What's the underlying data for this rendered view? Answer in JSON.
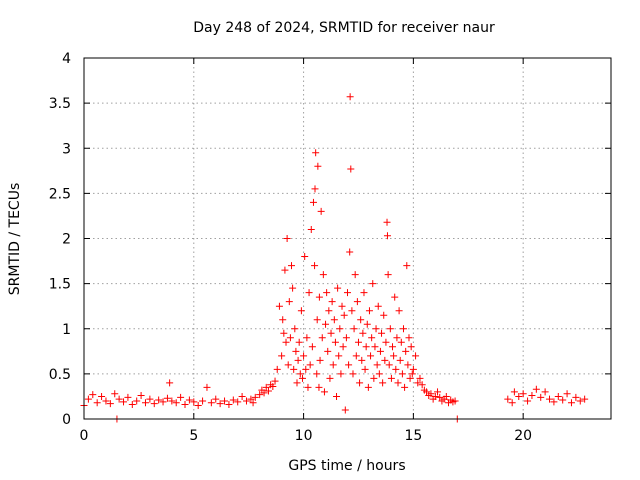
{
  "chart_data": {
    "type": "scatter",
    "title": "Day 248 of 2024, SRMTID for receiver naur",
    "xlabel": "GPS time / hours",
    "ylabel": "SRMTID / TECUs",
    "xlim": [
      0,
      24
    ],
    "ylim": [
      0,
      4
    ],
    "xticks": [
      0,
      5,
      10,
      15,
      20
    ],
    "yticks": [
      0,
      0.5,
      1,
      1.5,
      2,
      2.5,
      3,
      3.5,
      4
    ],
    "xtick_labels": [
      "0",
      "5",
      "10",
      "15",
      "20"
    ],
    "ytick_labels": [
      "0",
      "0.5",
      "1",
      "1.5",
      "2",
      "2.5",
      "3",
      "3.5",
      "4"
    ],
    "grid": true,
    "marker": "+",
    "color": "#ff0000",
    "series": [
      {
        "name": "SRMTID",
        "x": [
          0.0,
          0.2,
          0.4,
          0.6,
          0.8,
          1.0,
          1.2,
          1.4,
          1.5,
          1.6,
          1.8,
          2.0,
          2.2,
          2.4,
          2.6,
          2.8,
          3.0,
          3.2,
          3.4,
          3.6,
          3.8,
          3.9,
          4.0,
          4.2,
          4.4,
          4.6,
          4.8,
          5.0,
          5.2,
          5.4,
          5.6,
          5.8,
          6.0,
          6.2,
          6.4,
          6.6,
          6.8,
          7.0,
          7.2,
          7.4,
          7.6,
          7.7,
          7.8,
          8.0,
          8.1,
          8.2,
          8.3,
          8.4,
          8.5,
          8.6,
          8.7,
          8.8,
          8.9,
          9.0,
          9.05,
          9.1,
          9.15,
          9.2,
          9.25,
          9.3,
          9.35,
          9.4,
          9.45,
          9.5,
          9.55,
          9.6,
          9.65,
          9.7,
          9.75,
          9.8,
          9.85,
          9.9,
          9.95,
          10.0,
          10.05,
          10.1,
          10.15,
          10.2,
          10.25,
          10.3,
          10.35,
          10.4,
          10.45,
          10.5,
          10.52,
          10.55,
          10.6,
          10.62,
          10.65,
          10.7,
          10.72,
          10.75,
          10.8,
          10.85,
          10.9,
          10.95,
          11.0,
          11.05,
          11.1,
          11.15,
          11.2,
          11.25,
          11.3,
          11.35,
          11.4,
          11.45,
          11.5,
          11.55,
          11.6,
          11.65,
          11.7,
          11.75,
          11.8,
          11.85,
          11.9,
          11.95,
          12.0,
          12.05,
          12.1,
          12.12,
          12.15,
          12.2,
          12.25,
          12.3,
          12.35,
          12.4,
          12.45,
          12.5,
          12.55,
          12.6,
          12.65,
          12.7,
          12.75,
          12.8,
          12.85,
          12.9,
          12.95,
          13.0,
          13.05,
          13.1,
          13.15,
          13.2,
          13.25,
          13.3,
          13.35,
          13.4,
          13.45,
          13.5,
          13.55,
          13.6,
          13.65,
          13.7,
          13.75,
          13.8,
          13.82,
          13.85,
          13.9,
          13.95,
          14.0,
          14.05,
          14.1,
          14.15,
          14.2,
          14.25,
          14.3,
          14.35,
          14.4,
          14.45,
          14.5,
          14.55,
          14.6,
          14.65,
          14.7,
          14.75,
          14.8,
          14.85,
          14.9,
          14.95,
          15.0,
          15.1,
          15.2,
          15.3,
          15.4,
          15.5,
          15.6,
          15.7,
          15.8,
          15.9,
          16.0,
          16.1,
          16.2,
          16.3,
          16.4,
          16.5,
          16.6,
          16.7,
          16.8,
          16.9,
          17.0,
          19.3,
          19.5,
          19.6,
          19.8,
          20.0,
          20.2,
          20.4,
          20.6,
          20.8,
          21.0,
          21.2,
          21.4,
          21.6,
          21.8,
          22.0,
          22.2,
          22.4,
          22.6,
          22.8
        ],
        "y": [
          0.15,
          0.22,
          0.27,
          0.18,
          0.25,
          0.2,
          0.17,
          0.28,
          0.0,
          0.22,
          0.19,
          0.24,
          0.16,
          0.2,
          0.26,
          0.18,
          0.22,
          0.17,
          0.21,
          0.19,
          0.23,
          0.4,
          0.2,
          0.18,
          0.24,
          0.16,
          0.21,
          0.19,
          0.15,
          0.2,
          0.35,
          0.18,
          0.22,
          0.17,
          0.2,
          0.16,
          0.21,
          0.19,
          0.25,
          0.2,
          0.22,
          0.18,
          0.24,
          0.27,
          0.32,
          0.29,
          0.35,
          0.31,
          0.38,
          0.36,
          0.42,
          0.55,
          1.25,
          0.7,
          1.1,
          0.95,
          1.65,
          0.85,
          2.0,
          0.6,
          1.3,
          0.9,
          1.7,
          1.45,
          0.55,
          1.0,
          0.75,
          0.4,
          0.65,
          0.85,
          0.5,
          1.2,
          0.45,
          0.7,
          1.8,
          0.55,
          0.9,
          0.35,
          1.4,
          0.6,
          2.1,
          0.8,
          2.4,
          1.7,
          2.55,
          2.95,
          0.5,
          1.1,
          2.8,
          0.35,
          1.35,
          0.65,
          2.3,
          0.9,
          1.6,
          0.3,
          1.05,
          1.4,
          0.75,
          1.2,
          0.45,
          0.95,
          1.3,
          0.6,
          1.1,
          0.85,
          0.25,
          1.45,
          0.7,
          1.0,
          0.5,
          1.25,
          0.8,
          1.15,
          0.1,
          0.9,
          1.4,
          0.6,
          1.85,
          3.57,
          2.77,
          1.2,
          0.5,
          1.0,
          1.6,
          0.7,
          1.3,
          0.85,
          0.4,
          1.1,
          0.65,
          0.95,
          1.4,
          0.55,
          0.8,
          1.05,
          0.35,
          1.2,
          0.7,
          0.9,
          1.5,
          0.45,
          0.8,
          1.0,
          0.6,
          1.25,
          0.5,
          0.75,
          0.95,
          0.4,
          1.15,
          0.65,
          0.85,
          2.18,
          2.03,
          1.6,
          0.6,
          1.0,
          0.45,
          0.8,
          0.7,
          1.35,
          0.55,
          0.9,
          0.4,
          1.2,
          0.65,
          0.85,
          0.5,
          1.0,
          0.35,
          0.75,
          1.7,
          0.6,
          0.9,
          0.45,
          0.8,
          0.5,
          0.55,
          0.7,
          0.4,
          0.45,
          0.38,
          0.32,
          0.3,
          0.26,
          0.28,
          0.22,
          0.25,
          0.3,
          0.24,
          0.2,
          0.22,
          0.25,
          0.18,
          0.21,
          0.19,
          0.2,
          0.0,
          0.22,
          0.18,
          0.3,
          0.25,
          0.28,
          0.2,
          0.26,
          0.33,
          0.24,
          0.3,
          0.22,
          0.19,
          0.25,
          0.21,
          0.28,
          0.18,
          0.24,
          0.2,
          0.22
        ]
      }
    ]
  }
}
